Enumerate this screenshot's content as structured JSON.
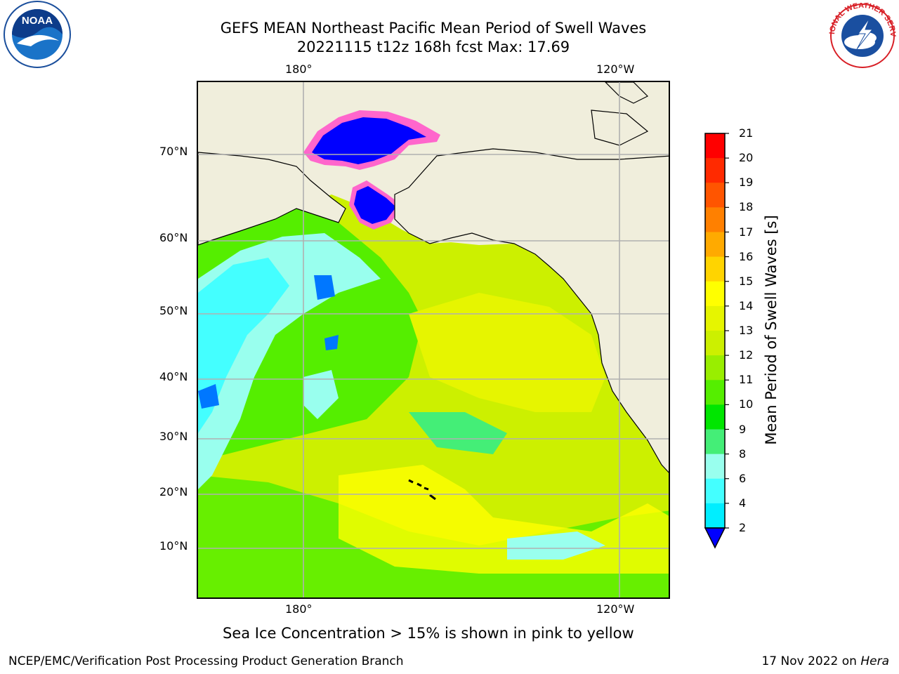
{
  "header": {
    "title_line1": "GEFS MEAN Northeast Pacific Mean Period of Swell Waves",
    "title_line2": "20221115 t12z 168h fcst   Max: 17.69"
  },
  "map": {
    "top_lon_labels": [
      "180°",
      "120°W"
    ],
    "bottom_lon_labels": [
      "180°",
      "120°W"
    ],
    "lat_labels": [
      "70°N",
      "60°N",
      "50°N",
      "40°N",
      "30°N",
      "20°N",
      "10°N"
    ],
    "land_color": "#f0eedc",
    "sea_ice_color": "#ff66cc",
    "grid": true
  },
  "colorbar": {
    "label": "Mean Period of Swell Waves [s]",
    "ticks": [
      "21",
      "20",
      "19",
      "18",
      "17",
      "16",
      "15",
      "14",
      "13",
      "12",
      "11",
      "10",
      "9",
      "8",
      "6",
      "4",
      "2"
    ],
    "colors_top_to_bottom": [
      "#ff0000",
      "#ff2a00",
      "#ff5500",
      "#ff8000",
      "#ffaa00",
      "#ffd400",
      "#ffff00",
      "#e6f500",
      "#ccf000",
      "#99ee00",
      "#55ee00",
      "#00e600",
      "#44ee77",
      "#99ffee",
      "#44ffff",
      "#00eeff",
      "#0077ff"
    ],
    "extend_color": "#0000ff"
  },
  "footnote": "Sea Ice Concentration > 15% is shown in pink to yellow",
  "footer": {
    "left": "NCEP/EMC/Verification Post Processing Product Generation Branch",
    "right_date": "17 Nov 2022 on",
    "right_machine": "Hera"
  },
  "logos": {
    "noaa": "NOAA",
    "nws": "NATIONAL WEATHER SERVICE"
  }
}
